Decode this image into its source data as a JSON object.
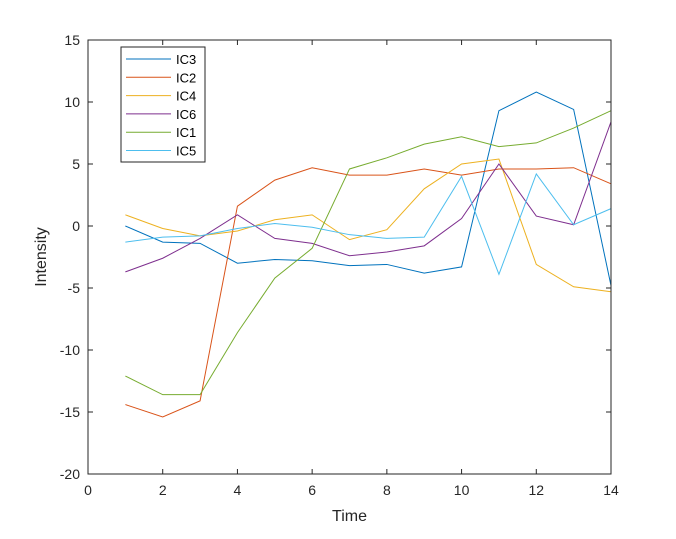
{
  "chart_data": {
    "type": "line",
    "title": "",
    "xlabel": "Time",
    "ylabel": "Intensity",
    "xlim": [
      0,
      14
    ],
    "ylim": [
      -20,
      15
    ],
    "xticks": [
      0,
      2,
      4,
      6,
      8,
      10,
      12,
      14
    ],
    "yticks": [
      -20,
      -15,
      -10,
      -5,
      0,
      5,
      10,
      15
    ],
    "xtick_labels": [
      "0",
      "2",
      "4",
      "6",
      "8",
      "10",
      "12",
      "14"
    ],
    "ytick_labels": [
      "-20",
      "-15",
      "-10",
      "-5",
      "0",
      "5",
      "10",
      "15"
    ],
    "grid": false,
    "legend_position": "top-left",
    "x": [
      1,
      2,
      3,
      4,
      5,
      6,
      7,
      8,
      9,
      10,
      11,
      12,
      13,
      14
    ],
    "series": [
      {
        "name": "IC3",
        "color": "#0072BD",
        "values": [
          0.0,
          -1.3,
          -1.4,
          -3.0,
          -2.7,
          -2.8,
          -3.2,
          -3.1,
          -3.8,
          -3.3,
          9.3,
          10.8,
          9.4,
          -4.8
        ]
      },
      {
        "name": "IC2",
        "color": "#D95319",
        "values": [
          -14.4,
          -15.4,
          -14.1,
          1.6,
          3.7,
          4.7,
          4.1,
          4.1,
          4.6,
          4.1,
          4.6,
          4.6,
          4.7,
          3.4
        ]
      },
      {
        "name": "IC4",
        "color": "#EDB120",
        "values": [
          0.9,
          -0.2,
          -0.8,
          -0.4,
          0.5,
          0.9,
          -1.1,
          -0.3,
          3.0,
          5.0,
          5.4,
          -3.1,
          -4.9,
          -5.3
        ]
      },
      {
        "name": "IC6",
        "color": "#7E2F8E",
        "values": [
          -3.7,
          -2.6,
          -1.0,
          0.9,
          -1.0,
          -1.4,
          -2.4,
          -2.1,
          -1.6,
          0.6,
          5.0,
          0.8,
          0.1,
          8.4
        ]
      },
      {
        "name": "IC1",
        "color": "#77AC30",
        "values": [
          -12.1,
          -13.6,
          -13.6,
          -8.6,
          -4.2,
          -1.8,
          4.6,
          5.5,
          6.6,
          7.2,
          6.4,
          6.7,
          7.9,
          9.3
        ]
      },
      {
        "name": "IC5",
        "color": "#4DBEEE",
        "values": [
          -1.3,
          -0.9,
          -0.8,
          -0.2,
          0.2,
          -0.1,
          -0.7,
          -1.0,
          -0.9,
          4.0,
          -3.9,
          4.2,
          0.1,
          1.4
        ]
      }
    ]
  }
}
